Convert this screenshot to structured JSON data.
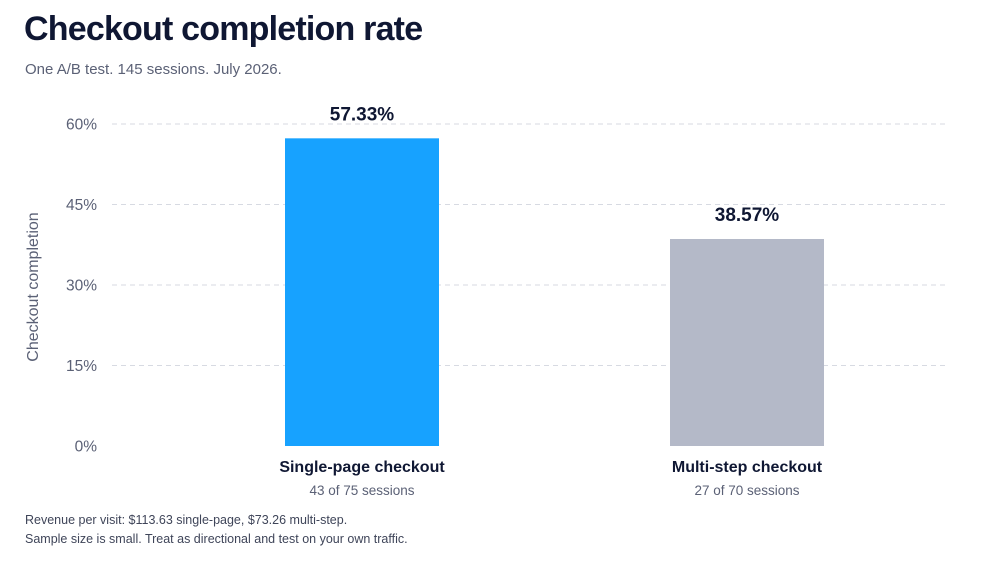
{
  "header": {
    "title": "Checkout completion rate",
    "subtitle": "One A/B test. 145 sessions. July 2026."
  },
  "footnotes": [
    "Revenue per visit: $113.63 single-page, $73.26 multi-step.",
    "Sample size is small. Treat as directional and test on your own traffic."
  ],
  "chart_data": {
    "type": "bar",
    "title": "Checkout completion rate",
    "subtitle": "One A/B test. 145 sessions. July 2026.",
    "ylabel": "Checkout completion",
    "xlabel": "",
    "ylim": [
      0,
      60
    ],
    "yticks": [
      0,
      15,
      30,
      45,
      60
    ],
    "ytick_labels": [
      "0%",
      "15%",
      "30%",
      "45%",
      "60%"
    ],
    "grid": true,
    "categories": [
      "Single-page checkout",
      "Multi-step checkout"
    ],
    "category_sublabels": [
      "43 of 75 sessions",
      "27 of 70 sessions"
    ],
    "values": [
      57.33,
      38.57
    ],
    "value_labels": [
      "57.33%",
      "38.57%"
    ],
    "bar_colors": [
      "#17a2ff",
      "#b4b9c8"
    ],
    "colors": {
      "grid": "#d7dae2",
      "axis_text": "#5b6176",
      "label_text": "#0f1733"
    }
  }
}
